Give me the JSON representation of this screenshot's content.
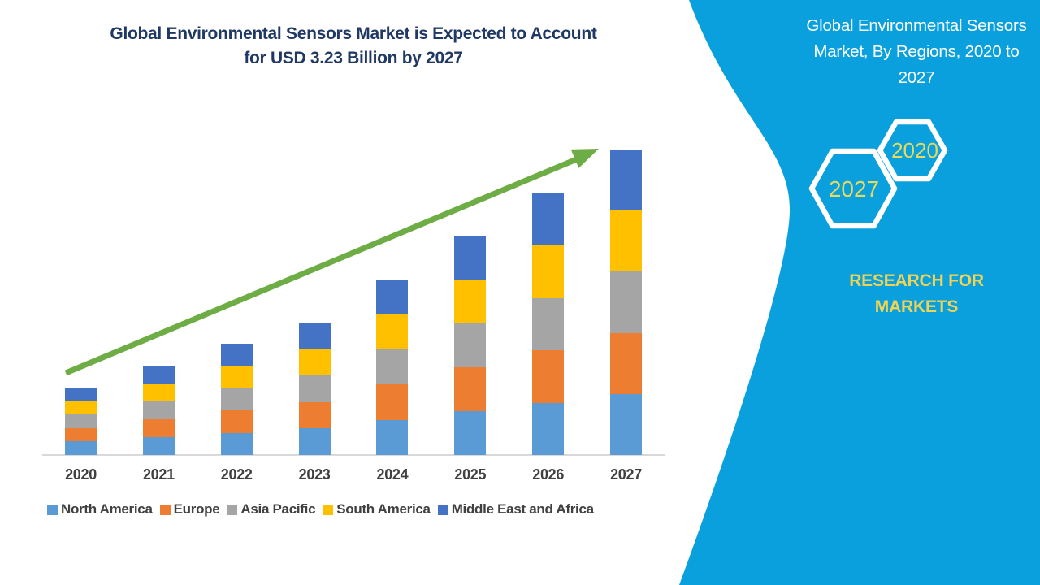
{
  "chart_section": {
    "title_lines": [
      "Global Environmental Sensors Market is Expected to Account",
      "for USD 3.23 Billion by 2027"
    ],
    "title_color": "#1F3864"
  },
  "chart_data": {
    "type": "bar",
    "stacked": true,
    "title": "Global Environmental Sensors Market is Expected to Account for USD 3.23 Billion by 2027",
    "unit": "USD Billion",
    "categories": [
      "2020",
      "2021",
      "2022",
      "2023",
      "2024",
      "2025",
      "2026",
      "2027"
    ],
    "series": [
      {
        "name": "North America",
        "color": "#5B9BD5",
        "values": [
          0.142,
          0.188,
          0.236,
          0.28,
          0.372,
          0.464,
          0.554,
          0.646
        ]
      },
      {
        "name": "Europe",
        "color": "#ED7D31",
        "values": [
          0.142,
          0.188,
          0.236,
          0.28,
          0.372,
          0.464,
          0.554,
          0.646
        ]
      },
      {
        "name": "Asia Pacific",
        "color": "#A5A5A5",
        "values": [
          0.142,
          0.188,
          0.236,
          0.28,
          0.372,
          0.464,
          0.554,
          0.646
        ]
      },
      {
        "name": "South America",
        "color": "#FFC000",
        "values": [
          0.142,
          0.188,
          0.236,
          0.28,
          0.372,
          0.464,
          0.554,
          0.646
        ]
      },
      {
        "name": "Middle East and Africa",
        "color": "#4472C4",
        "values": [
          0.142,
          0.188,
          0.236,
          0.28,
          0.372,
          0.464,
          0.554,
          0.646
        ]
      }
    ],
    "totals": [
      0.71,
      0.94,
      1.18,
      1.4,
      1.86,
      2.32,
      2.77,
      3.23
    ],
    "ylim": [
      0,
      3.4
    ],
    "grid": false,
    "y_axis_visible": false,
    "legend_position": "bottom",
    "axis_line_color": "#D9D9D9",
    "label_color": "#404040",
    "annotations": [
      {
        "type": "trend-arrow",
        "direction": "up-right",
        "color": "#6EAD46"
      }
    ]
  },
  "side_panel": {
    "bg_color": "#0AA0DE",
    "title_text": "Global Environmental Sensors Market, By Regions, 2020 to 2027",
    "title_lines": [
      "Global Environmental Sensors",
      "Market, By Regions, 2020 to",
      "2027"
    ],
    "hexagons": [
      {
        "label": "2027"
      },
      {
        "label": "2020"
      }
    ],
    "hex_label_color": "#E6DA5C",
    "brand_text": "RESEARCH FOR MARKETS",
    "brand_lines": [
      "RESEARCH FOR",
      "MARKETS"
    ],
    "brand_color": "#F0D355"
  }
}
